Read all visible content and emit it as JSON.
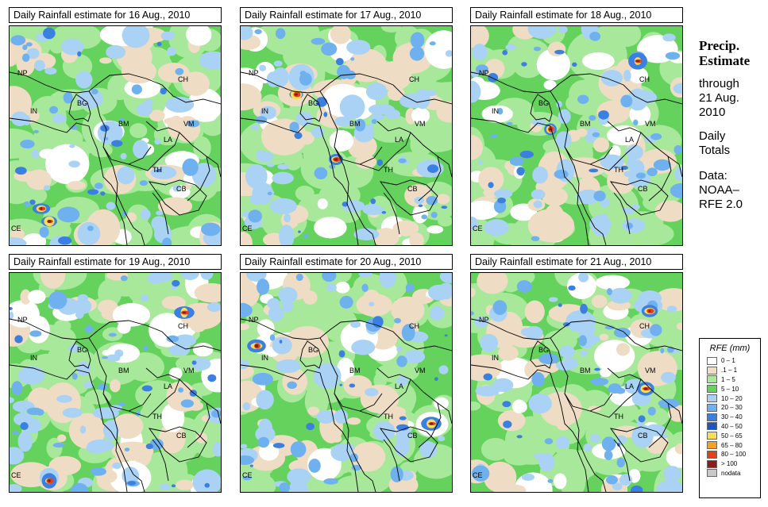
{
  "panels": [
    {
      "title": "Daily Rainfall estimate for  16 Aug., 2010",
      "variant": 0
    },
    {
      "title": "Daily Rainfall estimate for  17 Aug., 2010",
      "variant": 1
    },
    {
      "title": "Daily Rainfall estimate for  18 Aug., 2010",
      "variant": 2
    },
    {
      "title": "Daily Rainfall estimate for  19 Aug., 2010",
      "variant": 3
    },
    {
      "title": "Daily Rainfall estimate for  20 Aug., 2010",
      "variant": 4
    },
    {
      "title": "Daily Rainfall estimate for  21 Aug., 2010",
      "variant": 5
    }
  ],
  "map_labels": [
    "NP",
    "CH",
    "IN",
    "BG",
    "BM",
    "VM",
    "LA",
    "TH",
    "CB",
    "CE"
  ],
  "sidebar": {
    "heading1": "Precip.",
    "heading2": "Estimate",
    "line1": "through",
    "line2": "21 Aug.",
    "line3": "2010",
    "line4": "Daily",
    "line5": "Totals",
    "line6": "Data:",
    "line7": "NOAA–",
    "line8": "RFE 2.0"
  },
  "legend": {
    "title": "RFE (mm)",
    "items": [
      {
        "label": "0 – 1",
        "color": "#ffffff"
      },
      {
        "label": ".1 – 1",
        "color": "#efdcc4"
      },
      {
        "label": "1 – 5",
        "color": "#a8e89a"
      },
      {
        "label": "5 – 10",
        "color": "#66d25e"
      },
      {
        "label": "10 – 20",
        "color": "#a9d2f5"
      },
      {
        "label": "20 – 30",
        "color": "#6fb1ee"
      },
      {
        "label": "30 – 40",
        "color": "#3b80e0"
      },
      {
        "label": "40 – 50",
        "color": "#1f54c4"
      },
      {
        "label": "50 – 65",
        "color": "#f7dd5a"
      },
      {
        "label": "65 – 80",
        "color": "#f5a128"
      },
      {
        "label": "80 – 100",
        "color": "#e3411c"
      },
      {
        "label": "> 100",
        "color": "#8b1c1c"
      },
      {
        "label": "nodata",
        "color": "#c8c8c8"
      }
    ]
  }
}
